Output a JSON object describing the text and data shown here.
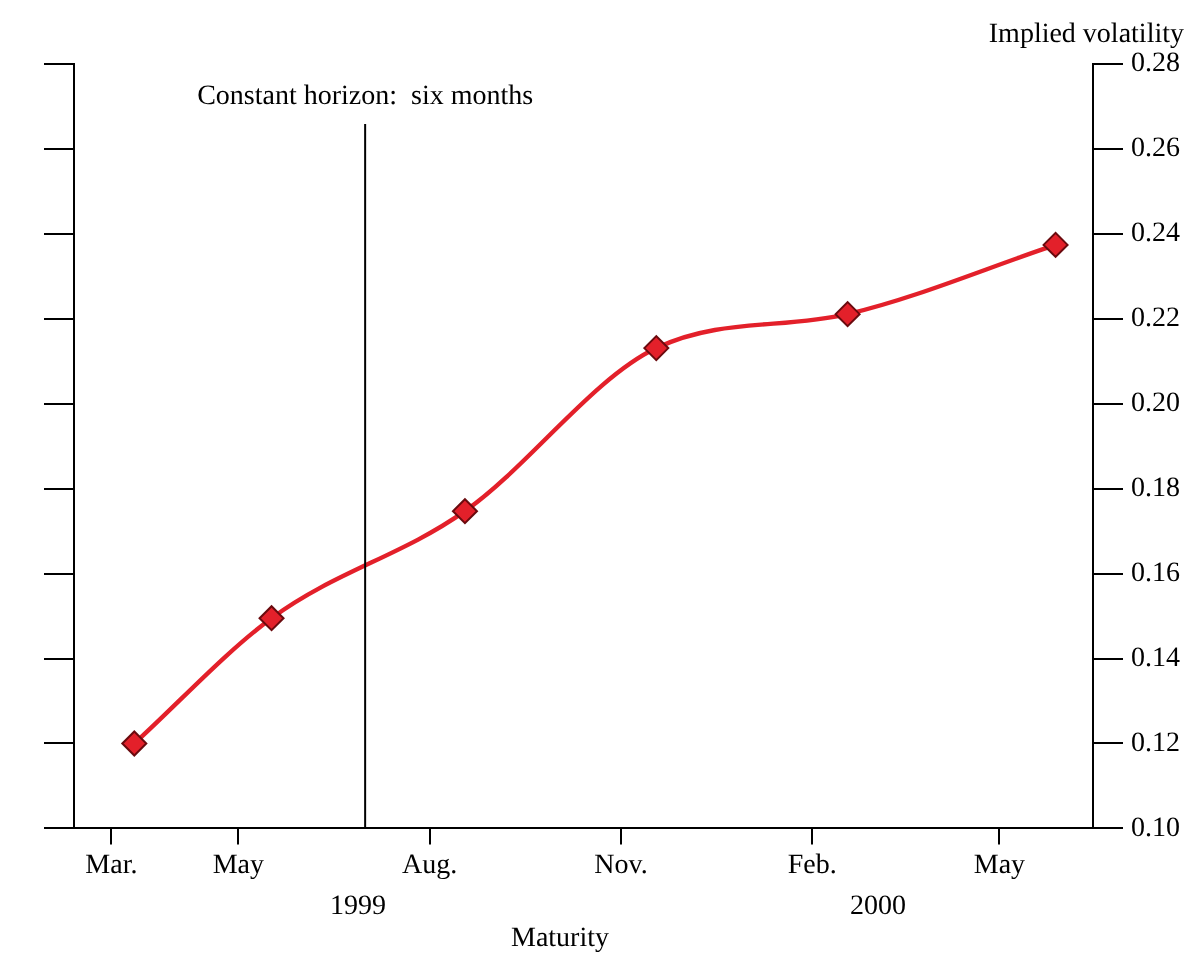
{
  "chart_data": {
    "type": "line",
    "xlabel": "Maturity",
    "ylabel": "Implied volatility",
    "x": [
      "1999-03-12",
      "1999-05-17",
      "1999-08-18",
      "1999-11-18",
      "2000-02-18",
      "2000-05-28"
    ],
    "series": [
      {
        "color": "#e3202a",
        "values": [
          0.12,
          0.1495,
          0.1747,
          0.2131,
          0.2211,
          0.2374
        ]
      }
    ],
    "xlim": [
      "1999-02-11",
      "2000-06-15"
    ],
    "xticks": [
      {
        "value": "1999-03-01",
        "label": "Mar."
      },
      {
        "value": "1999-05-01",
        "label": "May"
      },
      {
        "value": "1999-08-01",
        "label": "Aug."
      },
      {
        "value": "1999-11-01",
        "label": "Nov."
      },
      {
        "value": "2000-02-01",
        "label": "Feb."
      },
      {
        "value": "2000-05-01",
        "label": "May"
      }
    ],
    "ylim": [
      0.1,
      0.28
    ],
    "yticks": [
      {
        "value": 0.1,
        "label": "0.10"
      },
      {
        "value": 0.12,
        "label": "0.12"
      },
      {
        "value": 0.14,
        "label": "0.14"
      },
      {
        "value": 0.16,
        "label": "0.16"
      },
      {
        "value": 0.18,
        "label": "0.18"
      },
      {
        "value": 0.2,
        "label": "0.20"
      },
      {
        "value": 0.22,
        "label": "0.22"
      },
      {
        "value": 0.24,
        "label": "0.24"
      },
      {
        "value": 0.26,
        "label": "0.26"
      },
      {
        "value": 0.28,
        "label": "0.28"
      }
    ],
    "ref_lines": [
      {
        "axis": "x",
        "value": "1999-07-01",
        "label": "Constant horizon:  six months",
        "color": "#000000"
      }
    ],
    "annotations": [
      "1999",
      "2000"
    ],
    "marker": "diamond",
    "line_style": "solid",
    "grid": false,
    "legend": false
  }
}
